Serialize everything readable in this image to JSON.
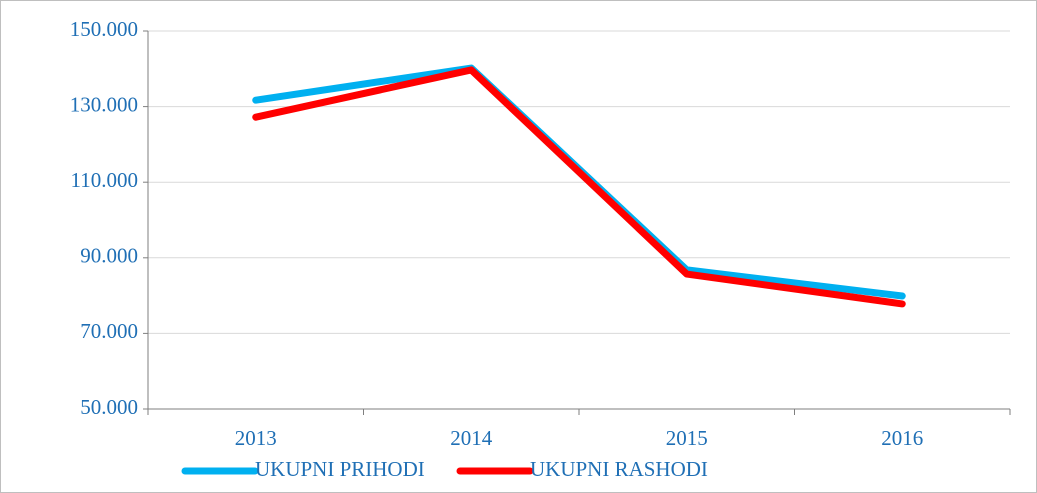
{
  "chart_data": {
    "type": "line",
    "categories": [
      "2013",
      "2014",
      "2015",
      "2016"
    ],
    "series": [
      {
        "name": "UKUPNI PRIHODI",
        "color": "#00b0f0",
        "values": [
          131700,
          140200,
          86800,
          79900
        ]
      },
      {
        "name": "UKUPNI RASHODI",
        "color": "#ff0000",
        "values": [
          127200,
          139700,
          85700,
          77800
        ]
      }
    ],
    "ylim": [
      50000,
      150000
    ],
    "yticks": [
      {
        "value": 50000,
        "label": "50.000"
      },
      {
        "value": 70000,
        "label": "70.000"
      },
      {
        "value": 90000,
        "label": "90.000"
      },
      {
        "value": 110000,
        "label": "110.000"
      },
      {
        "value": 130000,
        "label": "130.000"
      },
      {
        "value": 150000,
        "label": "150.000"
      }
    ],
    "grid": true,
    "legend": "bottom"
  }
}
